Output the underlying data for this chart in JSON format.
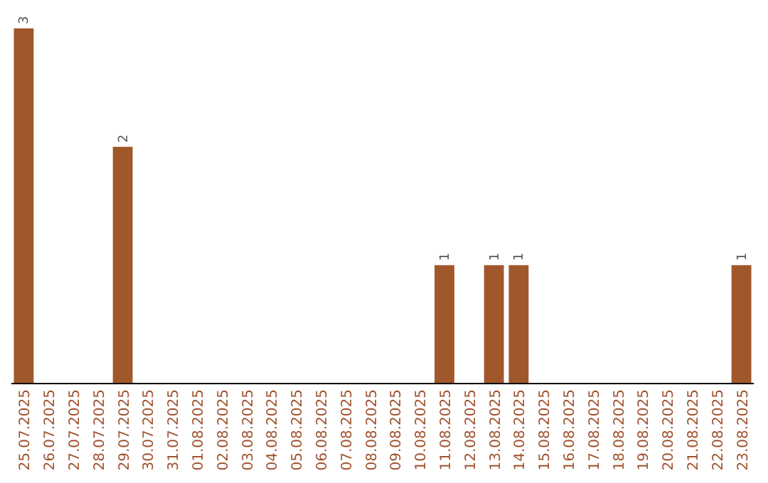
{
  "chart_data": {
    "type": "bar",
    "categories": [
      "25.07.2025",
      "26.07.2025",
      "27.07.2025",
      "28.07.2025",
      "29.07.2025",
      "30.07.2025",
      "31.07.2025",
      "01.08.2025",
      "02.08.2025",
      "03.08.2025",
      "04.08.2025",
      "05.08.2025",
      "06.08.2025",
      "07.08.2025",
      "08.08.2025",
      "09.08.2025",
      "10.08.2025",
      "11.08.2025",
      "12.08.2025",
      "13.08.2025",
      "14.08.2025",
      "15.08.2025",
      "16.08.2025",
      "17.08.2025",
      "18.08.2025",
      "19.08.2025",
      "20.08.2025",
      "21.08.2025",
      "22.08.2025",
      "23.08.2025"
    ],
    "values": [
      3,
      0,
      0,
      0,
      2,
      0,
      0,
      0,
      0,
      0,
      0,
      0,
      0,
      0,
      0,
      0,
      0,
      1,
      0,
      1,
      1,
      0,
      0,
      0,
      0,
      0,
      0,
      0,
      0,
      1
    ],
    "value_labels": [
      "3",
      null,
      null,
      null,
      "2",
      null,
      null,
      null,
      null,
      null,
      null,
      null,
      null,
      null,
      null,
      null,
      null,
      "1",
      null,
      "1",
      "1",
      null,
      null,
      null,
      null,
      null,
      null,
      null,
      null,
      "1"
    ],
    "color": "#a0572a"
  }
}
